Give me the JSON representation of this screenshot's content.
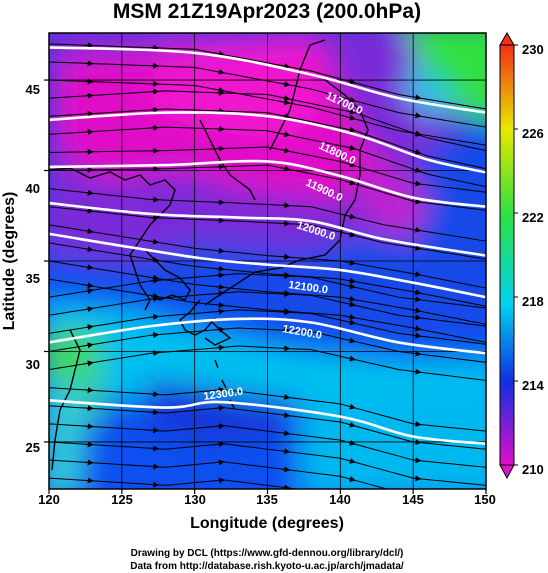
{
  "title": "MSM 21Z19Apr2023 (200.0hPa)",
  "xlabel": "Longitude (degrees)",
  "ylabel": "Latitude  (degrees)",
  "x_ticks": [
    "120",
    "125",
    "130",
    "135",
    "140",
    "145",
    "150"
  ],
  "y_ticks": [
    "25",
    "30",
    "35",
    "40",
    "45"
  ],
  "colorbar": {
    "ticks": [
      "210",
      "214",
      "218",
      "222",
      "226",
      "230"
    ]
  },
  "contour_labels": [
    "11700.0",
    "11800.0",
    "11900.0",
    "12000.0",
    "12100.0",
    "12200.0",
    "12300.0"
  ],
  "credits": {
    "line1": "Drawing by DCL (https://www.gfd-dennou.org/library/dcl/)",
    "line2": "Data from http://database.rish.kyoto-u.ac.jp/arch/jmadata/"
  },
  "colors": {
    "magenta": "#e010c8",
    "purple": "#8a2be2",
    "blue": "#1030e0",
    "cyan": "#00c8f0",
    "green": "#30e040",
    "yellow": "#e8e800",
    "red": "#f03018"
  },
  "chart_data": {
    "type": "heatmap",
    "title": "MSM 21Z19Apr2023 (200.0hPa)",
    "xlabel": "Longitude (degrees)",
    "ylabel": "Latitude  (degrees)",
    "xlim": [
      120,
      150
    ],
    "ylim": [
      22.4,
      47.6
    ],
    "colorbar_range": [
      210,
      230
    ],
    "contours": [
      {
        "level": 11700.0,
        "lat_at_lon": [
          [
            120,
            46.8
          ],
          [
            130,
            46.5
          ],
          [
            138,
            45.3
          ],
          [
            144,
            44.0
          ],
          [
            150,
            43.2
          ]
        ]
      },
      {
        "level": 11800.0,
        "lat_at_lon": [
          [
            120,
            42.8
          ],
          [
            128,
            43.2
          ],
          [
            135,
            43.0
          ],
          [
            141,
            42.0
          ],
          [
            146,
            40.6
          ],
          [
            150,
            39.9
          ]
        ]
      },
      {
        "level": 11900.0,
        "lat_at_lon": [
          [
            120,
            40.2
          ],
          [
            128,
            40.3
          ],
          [
            135,
            40.5
          ],
          [
            140,
            39.7
          ],
          [
            145,
            38.5
          ],
          [
            150,
            38.0
          ]
        ]
      },
      {
        "level": 12000.0,
        "lat_at_lon": [
          [
            120,
            38.2
          ],
          [
            127,
            37.6
          ],
          [
            133,
            37.4
          ],
          [
            138,
            37.2
          ],
          [
            143,
            36.2
          ],
          [
            150,
            35.3
          ]
        ]
      },
      {
        "level": 12100.0,
        "lat_at_lon": [
          [
            120,
            36.5
          ],
          [
            130,
            35.2
          ],
          [
            135,
            34.8
          ],
          [
            140,
            34.5
          ],
          [
            145,
            33.8
          ],
          [
            150,
            33.0
          ]
        ]
      },
      {
        "level": 12200.0,
        "lat_at_lon": [
          [
            120,
            30.5
          ],
          [
            127,
            31.4
          ],
          [
            133,
            31.8
          ],
          [
            138,
            31.6
          ],
          [
            144,
            30.5
          ],
          [
            150,
            29.9
          ]
        ]
      },
      {
        "level": 12300.0,
        "lat_at_lon": [
          [
            120,
            27.3
          ],
          [
            128,
            26.9
          ],
          [
            132,
            27.2
          ],
          [
            140,
            26.4
          ],
          [
            145,
            25.3
          ],
          [
            150,
            24.9
          ]
        ]
      }
    ]
  }
}
